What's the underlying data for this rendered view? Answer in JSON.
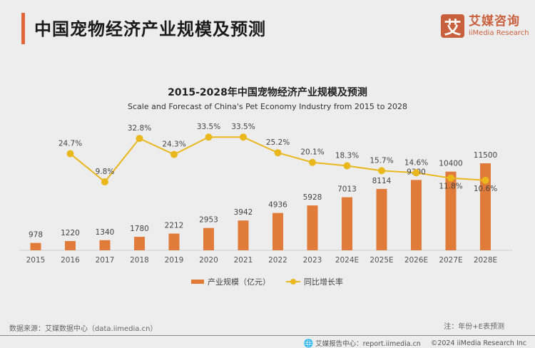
{
  "header": {
    "title": "中国宠物经济产业规模及预测",
    "logo_mark": "艾",
    "logo_cn": "艾媒咨询",
    "logo_en": "iiMedia Research",
    "accent_color": "#e0673a"
  },
  "chart_data": {
    "type": "bar",
    "title": "2015-2028年中国宠物经济产业规模及预测",
    "subtitle": "Scale and Forecast of China's Pet Economy Industry from 2015 to 2028",
    "categories": [
      "2015",
      "2016",
      "2017",
      "2018",
      "2019",
      "2020",
      "2021",
      "2022",
      "2023",
      "2024E",
      "2025E",
      "2026E",
      "2027E",
      "2028E"
    ],
    "series": [
      {
        "name": "产业规模（亿元）",
        "type": "bar",
        "color": "#e07b39",
        "values": [
          978,
          1220,
          1340,
          1780,
          2212,
          2953,
          3942,
          4936,
          5928,
          7013,
          8114,
          9300,
          10400,
          11500
        ],
        "labels": [
          "978",
          "1220",
          "1340",
          "1780",
          "2212",
          "2953",
          "3942",
          "4936",
          "5928",
          "7013",
          "8114",
          "9300",
          "10400",
          "11500"
        ]
      },
      {
        "name": "同比增长率",
        "type": "line",
        "color": "#eab71c",
        "values": [
          null,
          24.7,
          9.8,
          32.8,
          24.3,
          33.5,
          33.5,
          25.2,
          20.1,
          18.3,
          15.7,
          14.6,
          11.8,
          10.6
        ],
        "labels": [
          "",
          "24.7%",
          "9.8%",
          "32.8%",
          "24.3%",
          "33.5%",
          "33.5%",
          "25.2%",
          "20.1%",
          "18.3%",
          "15.7%",
          "14.6%",
          "11.8%",
          "10.6%"
        ]
      }
    ],
    "xlabel": "",
    "ylabel": "",
    "grid": false,
    "legend_position": "bottom-center"
  },
  "legend": {
    "bar_label": "产业规模（亿元）",
    "line_label": "同比增长率"
  },
  "footer": {
    "source": "数据来源：艾媒数据中心（data.iimedia.cn）",
    "note": "注：年份+E表预测",
    "report_center": "艾媒报告中心：report.iimedia.cn",
    "copyright": "©2024  iiMedia Research  Inc",
    "globe_icon": "🌐"
  }
}
